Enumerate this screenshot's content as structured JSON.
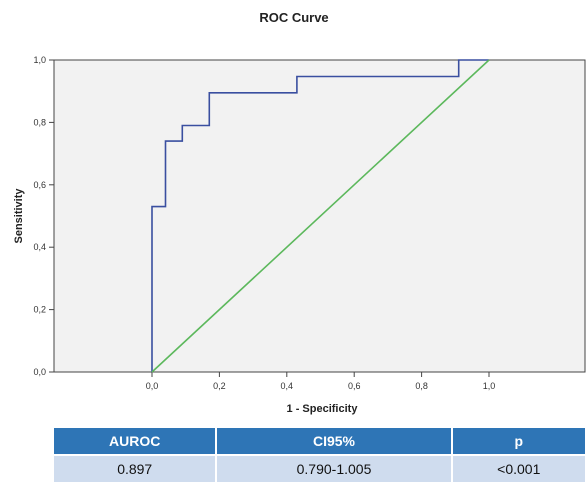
{
  "chart_data": {
    "type": "line",
    "title": "ROC Curve",
    "xlabel": "1 - Specificity",
    "ylabel": "Sensitivity",
    "xlim": [
      0,
      1
    ],
    "ylim": [
      0,
      1
    ],
    "x_ticks": [
      "0,0",
      "0,2",
      "0,4",
      "0,6",
      "0,8",
      "1,0"
    ],
    "y_ticks": [
      "0,0",
      "0,2",
      "0,4",
      "0,6",
      "0,8",
      "1,0"
    ],
    "grid": false,
    "series": [
      {
        "color": "#3a4fa0",
        "x": [
          0.0,
          0.0,
          0.04,
          0.04,
          0.09,
          0.09,
          0.17,
          0.17,
          0.43,
          0.43,
          0.91,
          0.91,
          1.0
        ],
        "y": [
          0.0,
          0.53,
          0.53,
          0.74,
          0.74,
          0.79,
          0.79,
          0.895,
          0.895,
          0.947,
          0.947,
          1.0,
          1.0
        ]
      },
      {
        "color": "#5cb85c",
        "x": [
          0,
          1
        ],
        "y": [
          0,
          1
        ]
      }
    ]
  },
  "colors": {
    "plot_background": "#f2f2f2",
    "table_header": "#2e75b6",
    "table_row": "#cfdcee"
  },
  "table": {
    "headers": [
      "AUROC",
      "CI95%",
      "p"
    ],
    "row": [
      "0.897",
      "0.790-1.005",
      "<0.001"
    ]
  }
}
